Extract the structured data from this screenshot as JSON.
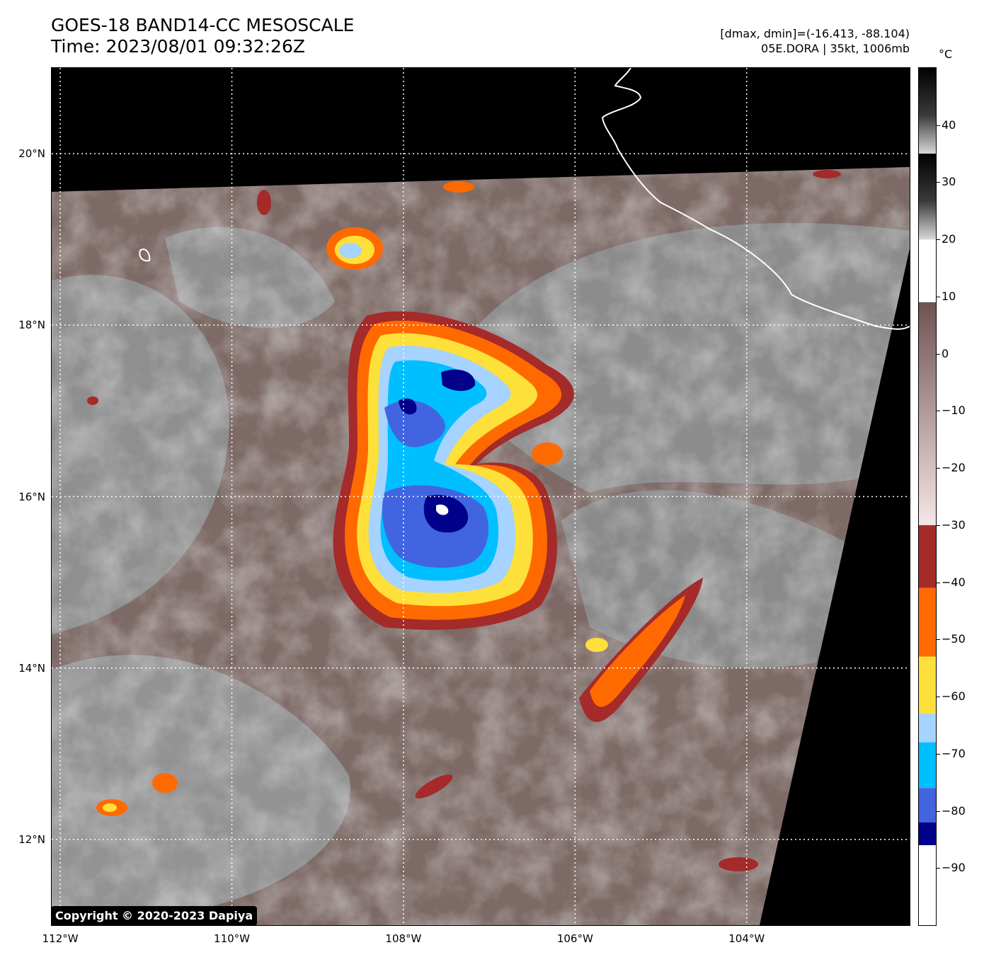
{
  "header": {
    "title_line1": "GOES-18 BAND14-CC MESOSCALE",
    "title_line2": "Time: 2023/08/01 09:32:26Z",
    "info_line1": "[dmax, dmin]=(-16.413, -88.104)",
    "info_line2": "05E.DORA | 35kt, 1006mb"
  },
  "map": {
    "lat_labels": [
      "20°N",
      "18°N",
      "16°N",
      "14°N",
      "12°N"
    ],
    "lon_labels": [
      "112°W",
      "110°W",
      "108°W",
      "106°W",
      "104°W"
    ],
    "lat_values": [
      20,
      18,
      16,
      14,
      12
    ],
    "lon_values": [
      -112,
      -110,
      -108,
      -106,
      -104
    ],
    "extent": {
      "lon_min": -112.1,
      "lon_max": -102.1,
      "lat_min": 11.0,
      "lat_max": 21.0
    },
    "grid": "dotted",
    "copyright": "Copyright © 2020-2023 Dapiya",
    "colors": {
      "background": "#000000",
      "warm_scene": "#7a6864",
      "cloud_gray": "#9a9a9a",
      "coastline": "#ffffff"
    }
  },
  "colorbar": {
    "unit": "°C",
    "tick_labels": [
      "40",
      "30",
      "20",
      "10",
      "0",
      "−10",
      "−20",
      "−30",
      "−40",
      "−50",
      "−60",
      "−70",
      "−80",
      "−90"
    ],
    "tick_values": [
      40,
      30,
      20,
      10,
      0,
      -10,
      -20,
      -30,
      -40,
      -50,
      -60,
      -70,
      -80,
      -90
    ],
    "range": [
      -100,
      50
    ],
    "bands": [
      {
        "from": 50,
        "to": 35,
        "color": "#000000"
      },
      {
        "from": 35,
        "to": 20,
        "color": "#6e6e6e"
      },
      {
        "from": 20,
        "to": 9,
        "color": "#ffffff"
      },
      {
        "from": 9,
        "to": -30,
        "color": "#eedcdc"
      },
      {
        "from": -30,
        "to": -41,
        "color": "#a52a2a"
      },
      {
        "from": -41,
        "to": -53,
        "color": "#ff6a00"
      },
      {
        "from": -53,
        "to": -63,
        "color": "#fde03a"
      },
      {
        "from": -63,
        "to": -68,
        "color": "#a6d3ff"
      },
      {
        "from": -68,
        "to": -76,
        "color": "#00bfff"
      },
      {
        "from": -76,
        "to": -82,
        "color": "#4165e1"
      },
      {
        "from": -82,
        "to": -86,
        "color": "#00008b"
      },
      {
        "from": -86,
        "to": -100,
        "color": "#ffffff"
      }
    ]
  }
}
